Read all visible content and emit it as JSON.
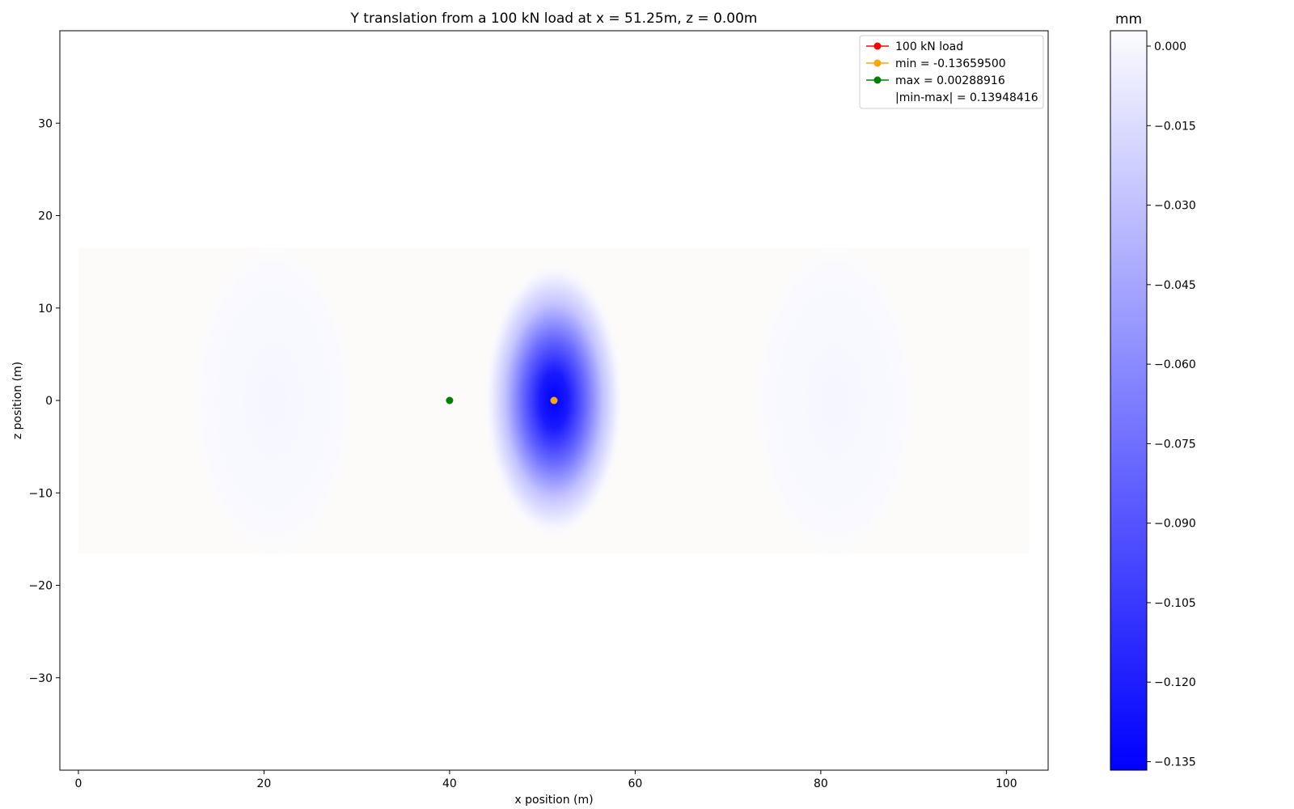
{
  "chart_data": {
    "type": "heatmap",
    "title": "Y translation from a 100 kN load at x = 51.25m, z = 0.00m",
    "xlabel": "x position (m)",
    "ylabel": "z position (m)",
    "xlim": [
      -2,
      104.5
    ],
    "ylim": [
      -40,
      40
    ],
    "x_ticks": [
      0,
      20,
      40,
      60,
      80,
      100
    ],
    "x_tick_labels": [
      "0",
      "20",
      "40",
      "60",
      "80",
      "100"
    ],
    "y_ticks": [
      30,
      20,
      10,
      0,
      -10,
      -20,
      -30
    ],
    "y_tick_labels": [
      "30",
      "20",
      "10",
      "0",
      "−10",
      "−20",
      "−30"
    ],
    "field_extent": {
      "x": [
        0,
        102.5
      ],
      "z": [
        -16.5,
        16.5
      ]
    },
    "load": {
      "x": 51.25,
      "z": 0.0
    },
    "min_point": {
      "x": 51.25,
      "z": 0.0,
      "value": -0.136595
    },
    "max_point": {
      "x": 40.0,
      "z": 0.0,
      "value": 0.00288916
    },
    "legend": {
      "placement": "upper right",
      "entries": [
        {
          "label": "100 kN load",
          "color": "#ff0000",
          "marker": true
        },
        {
          "label": "min = -0.13659500",
          "color": "#ffa500",
          "marker": true
        },
        {
          "label": "max = 0.00288916",
          "color": "#008000",
          "marker": true
        },
        {
          "label": "|min-max| = 0.13948416",
          "color": "none",
          "marker": false
        }
      ]
    },
    "colorbar": {
      "title": "mm",
      "range": [
        -0.1366,
        0.0029
      ],
      "ticks": [
        0.0,
        -0.015,
        -0.03,
        -0.045,
        -0.06,
        -0.075,
        -0.09,
        -0.105,
        -0.12,
        -0.135
      ],
      "tick_labels": [
        "0.000",
        "−0.015",
        "−0.030",
        "−0.045",
        "−0.060",
        "−0.075",
        "−0.090",
        "−0.105",
        "−0.120",
        "−0.135"
      ],
      "min_color": "#0000ff",
      "max_color": "#ffffff"
    },
    "grid": false
  }
}
